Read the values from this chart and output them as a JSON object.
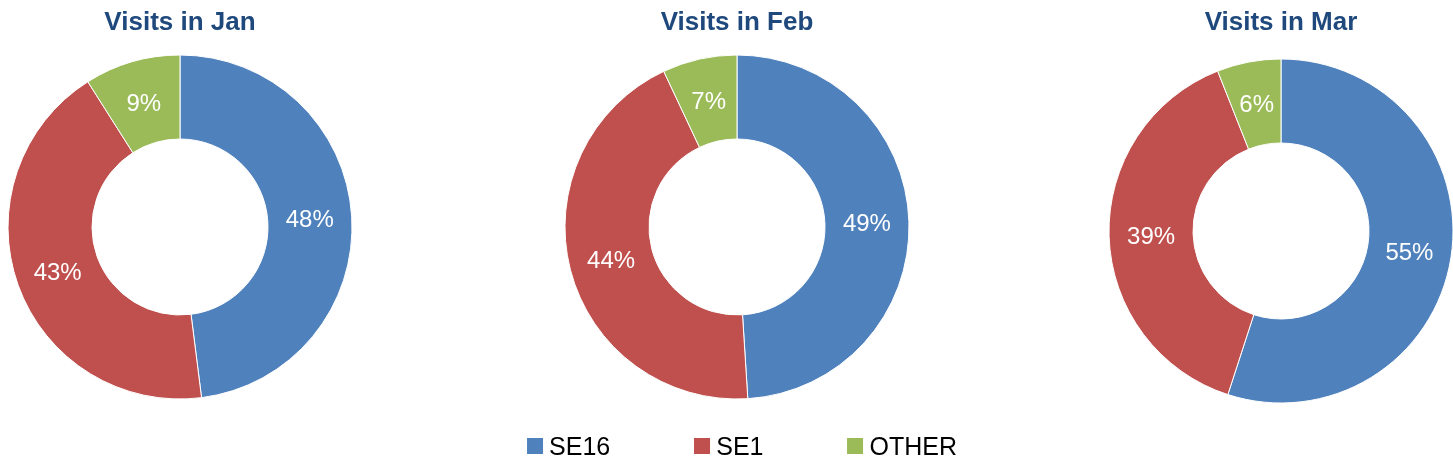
{
  "chart_data": [
    {
      "type": "donut",
      "title": "Visits in Jan",
      "categories": [
        null,
        null,
        null
      ],
      "values": [
        48,
        43,
        9
      ],
      "colors": [
        "#4f81bd",
        "#c0504d",
        "#9bbb59"
      ],
      "value_labels": [
        "48%",
        "43%",
        "9%"
      ]
    },
    {
      "type": "donut",
      "title": "Visits in Feb",
      "categories": [
        "SE16",
        "SE1",
        "OTHER"
      ],
      "values": [
        49,
        44,
        7
      ],
      "colors": [
        "#4f81bd",
        "#c0504d",
        "#9bbb59"
      ],
      "value_labels": [
        "49%",
        "44%",
        "7%"
      ],
      "legend": "bottom"
    },
    {
      "type": "donut",
      "title": "Visits in Mar",
      "categories": [
        null,
        null,
        null
      ],
      "values": [
        55,
        39,
        6
      ],
      "colors": [
        "#4f81bd",
        "#c0504d",
        "#9bbb59"
      ],
      "value_labels": [
        "55%",
        "39%",
        "6%"
      ]
    }
  ]
}
